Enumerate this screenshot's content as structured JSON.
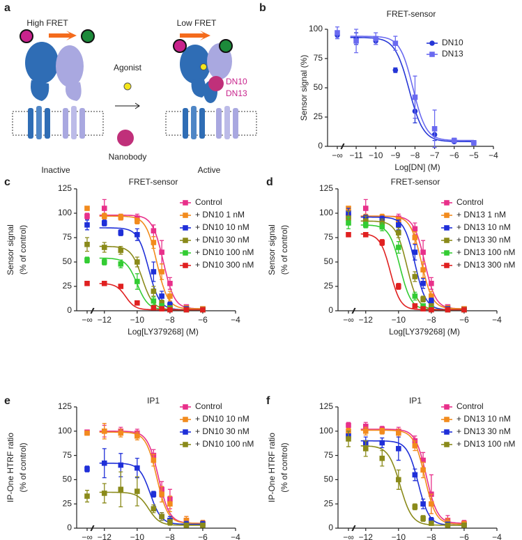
{
  "panel_a": {
    "letter": "a",
    "high_fret": "High FRET",
    "low_fret": "Low FRET",
    "agonist": "Agonist",
    "nanobody": "Nanobody",
    "inactive": "Inactive",
    "active": "Active",
    "dn10": "DN10",
    "dn13": "DN13"
  },
  "chart_data": [
    {
      "type": "scatter",
      "panel": "b",
      "title": "FRET-sensor",
      "ylabel": [
        "Sensor signal (%)"
      ],
      "xlabel": "Log[DN] (M)",
      "zero_dose_label": "−∞",
      "xlim": [
        -11.5,
        -4
      ],
      "xticks": [
        {
          "value": -11,
          "label": "−11"
        },
        {
          "value": -10,
          "label": "−10"
        },
        {
          "value": -9,
          "label": "−9"
        },
        {
          "value": -8,
          "label": "−8"
        },
        {
          "value": -7,
          "label": "−7"
        },
        {
          "value": -6,
          "label": "−6"
        },
        {
          "value": -5,
          "label": "−5"
        },
        {
          "value": -4,
          "label": "−4"
        }
      ],
      "ylim": [
        0,
        100
      ],
      "yticks": [
        0,
        25,
        50,
        75,
        100
      ],
      "x": [
        -11,
        -10,
        -9,
        -8,
        -7,
        -6,
        -5
      ],
      "series": [
        {
          "name": "DN10",
          "color": "#2536d6",
          "marker": "circle",
          "zero_dose_value": 95,
          "zero_dose_error": 3,
          "values": [
            92,
            90,
            65,
            30,
            10,
            4,
            3
          ],
          "errors": [
            5,
            3,
            2,
            10,
            5,
            1,
            1
          ],
          "fit": {
            "top": 93,
            "bottom": 4,
            "log_ic50": -8.3,
            "hill": 1.2
          }
        },
        {
          "name": "DN13",
          "color": "#6a6af0",
          "marker": "square",
          "zero_dose_value": 97,
          "zero_dose_error": 5,
          "values": [
            90,
            92,
            88,
            42,
            15,
            5,
            3
          ],
          "errors": [
            10,
            5,
            6,
            18,
            16,
            2,
            2
          ],
          "fit": {
            "top": 94,
            "bottom": 5,
            "log_ic50": -8.1,
            "hill": 1.3
          }
        }
      ]
    },
    {
      "type": "scatter",
      "panel": "c",
      "title": "FRET-sensor",
      "ylabel": [
        "Sensor signal",
        "(% of control)"
      ],
      "xlabel": "Log[LY379268] (M)",
      "zero_dose_label": "−∞",
      "xlim": [
        -12.5,
        -4
      ],
      "xticks": [
        {
          "value": -12,
          "label": "−12"
        },
        {
          "value": -10,
          "label": "−10"
        },
        {
          "value": -8,
          "label": "−8"
        },
        {
          "value": -6,
          "label": "−6"
        },
        {
          "value": -4,
          "label": "−4"
        }
      ],
      "ylim": [
        0,
        125
      ],
      "yticks": [
        0,
        25,
        50,
        75,
        100,
        125
      ],
      "x": [
        -12,
        -11,
        -10,
        -9,
        -8.5,
        -8,
        -7,
        -6
      ],
      "series": [
        {
          "name": "Control",
          "color": "#e8308a",
          "marker": "square",
          "zero_dose_value": 97,
          "zero_dose_error": 3,
          "values": [
            105,
            96,
            95,
            82,
            60,
            28,
            4,
            2
          ],
          "errors": [
            9,
            3,
            4,
            6,
            12,
            6,
            2,
            1
          ],
          "fit": {
            "top": 98,
            "bottom": 2,
            "log_ic50": -8.4,
            "hill": 1.3
          }
        },
        {
          "name": "+ DN10 1 nM",
          "color": "#f28b1d",
          "marker": "square",
          "zero_dose_value": 105,
          "zero_dose_error": 2,
          "values": [
            97,
            96,
            92,
            70,
            40,
            15,
            3,
            2
          ],
          "errors": [
            3,
            3,
            3,
            6,
            8,
            5,
            2,
            1
          ],
          "fit": {
            "top": 97,
            "bottom": 2,
            "log_ic50": -8.8,
            "hill": 1.3
          }
        },
        {
          "name": "+ DN10 10 nM",
          "color": "#1f2fd8",
          "marker": "square",
          "zero_dose_value": 88,
          "zero_dose_error": 5,
          "values": [
            90,
            80,
            78,
            40,
            15,
            6,
            2,
            1
          ],
          "errors": [
            3,
            3,
            6,
            10,
            5,
            3,
            1,
            1
          ],
          "fit": {
            "top": 85,
            "bottom": 1,
            "log_ic50": -9.3,
            "hill": 1.3
          }
        },
        {
          "name": "+ DN10 30 nM",
          "color": "#8a8a1a",
          "marker": "square",
          "zero_dose_value": 68,
          "zero_dose_error": 7,
          "values": [
            65,
            62,
            50,
            20,
            8,
            3,
            1,
            1
          ],
          "errors": [
            5,
            4,
            5,
            5,
            3,
            2,
            1,
            1
          ],
          "fit": {
            "top": 66,
            "bottom": 1,
            "log_ic50": -9.7,
            "hill": 1.3
          }
        },
        {
          "name": "+ DN10 100 nM",
          "color": "#33cc33",
          "marker": "square",
          "zero_dose_value": 52,
          "zero_dose_error": 3,
          "values": [
            50,
            48,
            30,
            10,
            5,
            2,
            1,
            1
          ],
          "errors": [
            3,
            4,
            8,
            4,
            2,
            1,
            1,
            1
          ],
          "fit": {
            "top": 54,
            "bottom": 1,
            "log_ic50": -10.0,
            "hill": 1.3
          }
        },
        {
          "name": "+ DN10 300 nM",
          "color": "#e02020",
          "marker": "square",
          "zero_dose_value": 28,
          "zero_dose_error": 1,
          "values": [
            28,
            25,
            8,
            3,
            2,
            1,
            1,
            1
          ],
          "errors": [
            1,
            2,
            2,
            1,
            1,
            1,
            1,
            1
          ],
          "fit": {
            "top": 28,
            "bottom": 1,
            "log_ic50": -10.7,
            "hill": 1.5
          }
        }
      ]
    },
    {
      "type": "scatter",
      "panel": "d",
      "title": "FRET-sensor",
      "ylabel": [
        "Sensor signal",
        "(% of control)"
      ],
      "xlabel": "Log[LY379268] (M)",
      "zero_dose_label": "−∞",
      "xlim": [
        -12.5,
        -4
      ],
      "xticks": [
        {
          "value": -12,
          "label": "−12"
        },
        {
          "value": -10,
          "label": "−10"
        },
        {
          "value": -8,
          "label": "−8"
        },
        {
          "value": -6,
          "label": "−6"
        },
        {
          "value": -4,
          "label": "−4"
        }
      ],
      "ylim": [
        0,
        125
      ],
      "yticks": [
        0,
        25,
        50,
        75,
        100,
        125
      ],
      "x": [
        -12,
        -11,
        -10,
        -9,
        -8.5,
        -8,
        -7,
        -6
      ],
      "series": [
        {
          "name": "Control",
          "color": "#e8308a",
          "marker": "square",
          "zero_dose_value": 97,
          "zero_dose_error": 3,
          "values": [
            105,
            95,
            95,
            84,
            60,
            28,
            4,
            2
          ],
          "errors": [
            9,
            3,
            4,
            6,
            12,
            6,
            2,
            1
          ],
          "fit": {
            "top": 97,
            "bottom": 2,
            "log_ic50": -8.4,
            "hill": 1.3
          }
        },
        {
          "name": "+ DN13 1 nM",
          "color": "#f28b1d",
          "marker": "square",
          "zero_dose_value": 105,
          "zero_dose_error": 2,
          "values": [
            96,
            96,
            93,
            75,
            42,
            15,
            3,
            2
          ],
          "errors": [
            3,
            3,
            3,
            6,
            8,
            5,
            2,
            1
          ],
          "fit": {
            "top": 97,
            "bottom": 2,
            "log_ic50": -8.6,
            "hill": 1.3
          }
        },
        {
          "name": "+ DN13 10 nM",
          "color": "#1f2fd8",
          "marker": "square",
          "zero_dose_value": 100,
          "zero_dose_error": 5,
          "values": [
            95,
            94,
            88,
            60,
            28,
            10,
            2,
            1
          ],
          "errors": [
            3,
            3,
            5,
            8,
            5,
            3,
            1,
            1
          ],
          "fit": {
            "top": 96,
            "bottom": 1,
            "log_ic50": -9.0,
            "hill": 1.3
          }
        },
        {
          "name": "+ DN13 30 nM",
          "color": "#8a8a1a",
          "marker": "square",
          "zero_dose_value": 95,
          "zero_dose_error": 7,
          "values": [
            92,
            90,
            80,
            35,
            12,
            5,
            1,
            1
          ],
          "errors": [
            5,
            4,
            5,
            5,
            3,
            2,
            1,
            1
          ],
          "fit": {
            "top": 92,
            "bottom": 1,
            "log_ic50": -9.5,
            "hill": 1.3
          }
        },
        {
          "name": "+ DN13 100 nM",
          "color": "#33cc33",
          "marker": "square",
          "zero_dose_value": 90,
          "zero_dose_error": 6,
          "values": [
            88,
            86,
            65,
            15,
            5,
            2,
            1,
            1
          ],
          "errors": [
            3,
            4,
            6,
            4,
            2,
            1,
            1,
            1
          ],
          "fit": {
            "top": 88,
            "bottom": 1,
            "log_ic50": -9.9,
            "hill": 1.3
          }
        },
        {
          "name": "+ DN13 300 nM",
          "color": "#e02020",
          "marker": "square",
          "zero_dose_value": 78,
          "zero_dose_error": 2,
          "values": [
            78,
            70,
            25,
            5,
            2,
            1,
            1,
            1
          ],
          "errors": [
            2,
            3,
            3,
            1,
            1,
            1,
            1,
            1
          ],
          "fit": {
            "top": 79,
            "bottom": 1,
            "log_ic50": -10.5,
            "hill": 1.4
          }
        }
      ]
    },
    {
      "type": "scatter",
      "panel": "e",
      "title": "IP1",
      "ylabel": [
        "IP-One HTRF ratio",
        "(% of control)"
      ],
      "xlabel": "Log[LY379268] (M)",
      "zero_dose_label": "−∞",
      "xlim": [
        -12.5,
        -4
      ],
      "xticks": [
        {
          "value": -12,
          "label": "−12"
        },
        {
          "value": -10,
          "label": "−10"
        },
        {
          "value": -8,
          "label": "−8"
        },
        {
          "value": -6,
          "label": "−6"
        },
        {
          "value": -4,
          "label": "−4"
        }
      ],
      "ylim": [
        0,
        125
      ],
      "yticks": [
        0,
        25,
        50,
        75,
        100,
        125
      ],
      "x": [
        -12,
        -11,
        -10,
        -9,
        -8.5,
        -8,
        -7,
        -6
      ],
      "series": [
        {
          "name": "Control",
          "color": "#e8308a",
          "marker": "square",
          "zero_dose_value": 99,
          "zero_dose_error": 2,
          "values": [
            100,
            100,
            98,
            75,
            40,
            30,
            8,
            5
          ],
          "errors": [
            6,
            4,
            4,
            6,
            8,
            10,
            4,
            3
          ],
          "fit": {
            "top": 100,
            "bottom": 5,
            "log_ic50": -8.7,
            "hill": 1.3
          }
        },
        {
          "name": "+ DN10 10 nM",
          "color": "#f28b1d",
          "marker": "square",
          "zero_dose_value": 98,
          "zero_dose_error": 2,
          "values": [
            100,
            98,
            95,
            70,
            35,
            25,
            8,
            5
          ],
          "errors": [
            8,
            4,
            4,
            6,
            8,
            8,
            4,
            3
          ],
          "fit": {
            "top": 99,
            "bottom": 5,
            "log_ic50": -8.8,
            "hill": 1.3
          }
        },
        {
          "name": "+ DN10 30 nM",
          "color": "#1f2fd8",
          "marker": "square",
          "zero_dose_value": 61,
          "zero_dose_error": 3,
          "values": [
            67,
            65,
            62,
            35,
            12,
            8,
            4,
            4
          ],
          "errors": [
            15,
            12,
            10,
            3,
            4,
            4,
            3,
            3
          ],
          "fit": {
            "top": 67,
            "bottom": 4,
            "log_ic50": -9.2,
            "hill": 1.3
          }
        },
        {
          "name": "+ DN10 100 nM",
          "color": "#8a8a1a",
          "marker": "square",
          "zero_dose_value": 33,
          "zero_dose_error": 6,
          "values": [
            36,
            40,
            38,
            20,
            12,
            6,
            3,
            3
          ],
          "errors": [
            10,
            18,
            15,
            4,
            4,
            3,
            2,
            2
          ],
          "fit": {
            "top": 37,
            "bottom": 3,
            "log_ic50": -9.3,
            "hill": 1.3
          }
        }
      ]
    },
    {
      "type": "scatter",
      "panel": "f",
      "title": "IP1",
      "ylabel": [
        "IP-One HTRF ratio",
        "(% of control)"
      ],
      "xlabel": "Log[LY379268] (M)",
      "zero_dose_label": "−∞",
      "xlim": [
        -12.5,
        -4
      ],
      "xticks": [
        {
          "value": -12,
          "label": "−12"
        },
        {
          "value": -10,
          "label": "−10"
        },
        {
          "value": -8,
          "label": "−8"
        },
        {
          "value": -6,
          "label": "−6"
        },
        {
          "value": -4,
          "label": "−4"
        }
      ],
      "ylim": [
        0,
        125
      ],
      "yticks": [
        0,
        25,
        50,
        75,
        100,
        125
      ],
      "x": [
        -12,
        -11,
        -10,
        -9,
        -8.5,
        -8,
        -7,
        -6
      ],
      "series": [
        {
          "name": "Control",
          "color": "#e8308a",
          "marker": "square",
          "zero_dose_value": 106,
          "zero_dose_error": 3,
          "values": [
            105,
            102,
            100,
            90,
            70,
            35,
            8,
            5
          ],
          "errors": [
            4,
            3,
            4,
            5,
            8,
            20,
            5,
            3
          ],
          "fit": {
            "top": 102,
            "bottom": 5,
            "log_ic50": -8.3,
            "hill": 1.3
          }
        },
        {
          "name": "+ DN13 10 nM",
          "color": "#f28b1d",
          "marker": "square",
          "zero_dose_value": 100,
          "zero_dose_error": 3,
          "values": [
            100,
            100,
            98,
            85,
            60,
            25,
            6,
            4
          ],
          "errors": [
            4,
            3,
            4,
            5,
            8,
            10,
            4,
            3
          ],
          "fit": {
            "top": 101,
            "bottom": 4,
            "log_ic50": -8.4,
            "hill": 1.3
          }
        },
        {
          "name": "+ DN13 30 nM",
          "color": "#1f2fd8",
          "marker": "square",
          "zero_dose_value": 95,
          "zero_dose_error": 5,
          "values": [
            88,
            88,
            82,
            55,
            25,
            8,
            4,
            3
          ],
          "errors": [
            6,
            5,
            12,
            6,
            5,
            3,
            2,
            2
          ],
          "fit": {
            "top": 90,
            "bottom": 3,
            "log_ic50": -8.8,
            "hill": 1.3
          }
        },
        {
          "name": "+ DN13 100 nM",
          "color": "#8a8a1a",
          "marker": "square",
          "zero_dose_value": 92,
          "zero_dose_error": 8,
          "values": [
            82,
            72,
            50,
            22,
            10,
            5,
            3,
            3
          ],
          "errors": [
            8,
            8,
            10,
            3,
            3,
            2,
            2,
            2
          ],
          "fit": {
            "top": 85,
            "bottom": 3,
            "log_ic50": -9.9,
            "hill": 1.2
          }
        }
      ]
    }
  ]
}
